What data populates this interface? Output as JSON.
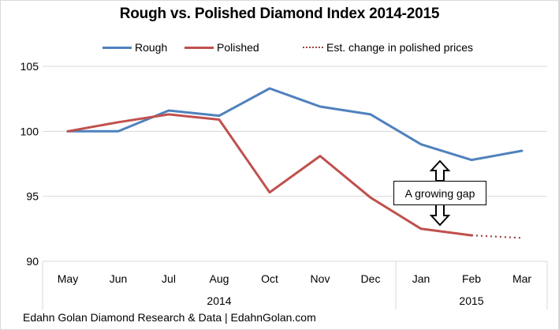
{
  "chart_data": {
    "type": "line",
    "title": "Rough vs. Polished Diamond  Index 2014-2015",
    "xlabel": "",
    "ylabel": "",
    "categories": [
      "May",
      "Jun",
      "Jul",
      "Aug",
      "Oct",
      "Nov",
      "Dec",
      "Jan",
      "Feb",
      "Mar"
    ],
    "category_groups": [
      {
        "label": "2014",
        "members": [
          "May",
          "Jun",
          "Jul",
          "Aug",
          "Oct",
          "Nov",
          "Dec"
        ]
      },
      {
        "label": "2015",
        "members": [
          "Jan",
          "Feb",
          "Mar"
        ]
      }
    ],
    "series": [
      {
        "name": "Rough",
        "color": "#4F81BD",
        "style": "solid",
        "values": [
          100.0,
          100.0,
          101.6,
          101.2,
          103.3,
          101.9,
          101.3,
          99.0,
          97.8,
          98.5
        ]
      },
      {
        "name": "Polished",
        "color": "#C0504D",
        "style": "solid",
        "values": [
          100.0,
          100.7,
          101.3,
          100.9,
          95.3,
          98.1,
          94.9,
          92.5,
          92.0,
          null
        ]
      },
      {
        "name": "Est. change in polished prices",
        "color": "#A0413F",
        "style": "dotted",
        "values": [
          null,
          null,
          null,
          null,
          null,
          null,
          null,
          null,
          92.0,
          91.8
        ]
      }
    ],
    "ylim": [
      90,
      105
    ],
    "yticks": [
      90,
      95,
      100,
      105
    ],
    "grid": true,
    "legend_position": "top-center",
    "annotation": {
      "text": "A growing gap",
      "between": "Jan-Feb",
      "arrow": "double-vertical"
    }
  },
  "footer": "Edahn Golan Diamond Research & Data  |  EdahnGolan.com"
}
